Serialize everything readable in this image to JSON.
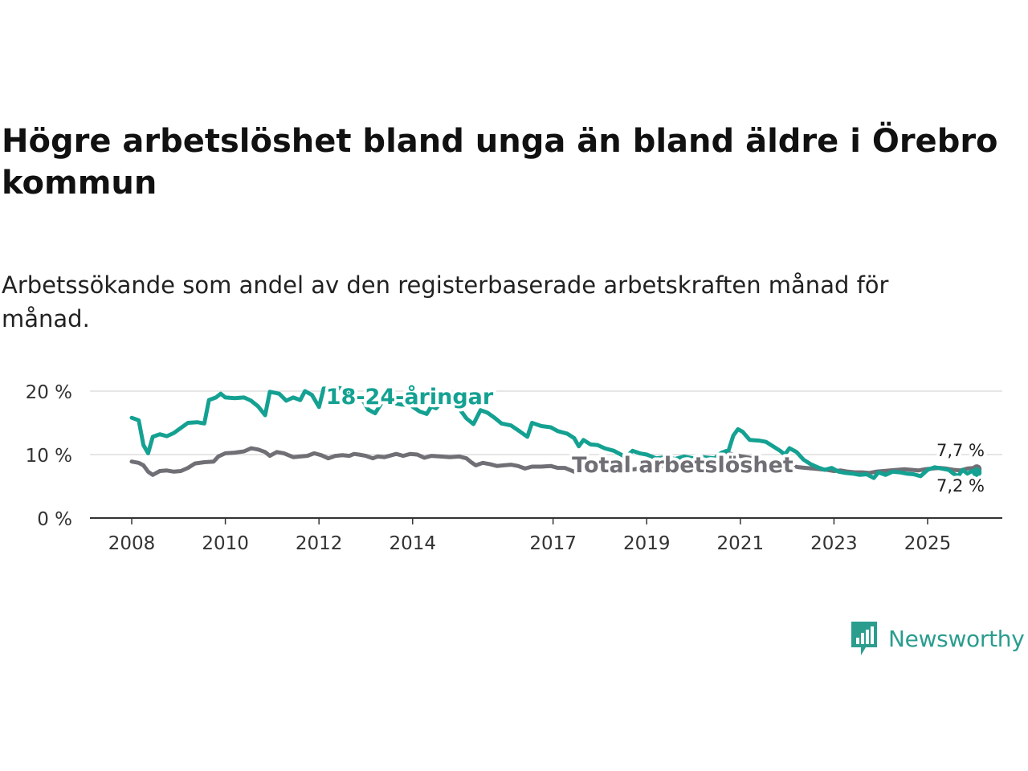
{
  "title": "Högre arbetslöshet bland unga än bland äldre i Örebro kommun",
  "subtitle": "Arbetssökande som andel av den registerbaserade arbetskraften månad för månad.",
  "brand": {
    "name": "Newsworthy",
    "icon": "newsworthy-logo-icon"
  },
  "colors": {
    "youth": "#14a192",
    "total": "#6f6f75",
    "axis": "#333333",
    "grid": "#dddddd"
  },
  "chart_data": {
    "type": "line",
    "title": "",
    "xlabel": "",
    "ylabel": "",
    "xlim": [
      2007.6,
      2026.7
    ],
    "ylim": [
      0,
      20
    ],
    "grid": true,
    "y_ticks": [
      0,
      10,
      20
    ],
    "y_tick_labels": [
      "0 %",
      "10 %",
      "20 %"
    ],
    "x_ticks": [
      2008,
      2010,
      2012,
      2014,
      2017,
      2019,
      2021,
      2023,
      2025
    ],
    "x_tick_labels": [
      "2008",
      "2010",
      "2012",
      "2014",
      "2017",
      "2019",
      "2021",
      "2023",
      "2025"
    ],
    "series": [
      {
        "name": "18-24-åringar",
        "label": "18-24-åringar",
        "end_label": "7,2 %",
        "end_value": 7.2,
        "points": [
          [
            2008.0,
            15.8
          ],
          [
            2008.15,
            15.4
          ],
          [
            2008.25,
            11.5
          ],
          [
            2008.35,
            10.2
          ],
          [
            2008.45,
            12.8
          ],
          [
            2008.6,
            13.2
          ],
          [
            2008.75,
            12.9
          ],
          [
            2008.9,
            13.4
          ],
          [
            2009.05,
            14.2
          ],
          [
            2009.2,
            15.0
          ],
          [
            2009.4,
            15.1
          ],
          [
            2009.55,
            14.9
          ],
          [
            2009.65,
            18.6
          ],
          [
            2009.8,
            19.0
          ],
          [
            2009.9,
            19.6
          ],
          [
            2010.0,
            19.0
          ],
          [
            2010.2,
            18.9
          ],
          [
            2010.4,
            19.0
          ],
          [
            2010.55,
            18.5
          ],
          [
            2010.7,
            17.6
          ],
          [
            2010.85,
            16.2
          ],
          [
            2010.95,
            19.9
          ],
          [
            2011.15,
            19.6
          ],
          [
            2011.3,
            18.5
          ],
          [
            2011.45,
            19.0
          ],
          [
            2011.6,
            18.6
          ],
          [
            2011.7,
            20.0
          ],
          [
            2011.85,
            19.4
          ],
          [
            2012.0,
            17.5
          ],
          [
            2012.1,
            20.4
          ],
          [
            2012.3,
            20.3
          ],
          [
            2012.45,
            20.5
          ],
          [
            2012.6,
            19.6
          ],
          [
            2012.75,
            20.1
          ],
          [
            2012.85,
            18.7
          ],
          [
            2012.95,
            18.4
          ],
          [
            2013.05,
            17.1
          ],
          [
            2013.2,
            16.5
          ],
          [
            2013.35,
            18.3
          ],
          [
            2013.55,
            18.2
          ],
          [
            2013.75,
            17.9
          ],
          [
            2013.95,
            17.8
          ],
          [
            2014.15,
            16.8
          ],
          [
            2014.3,
            16.4
          ],
          [
            2014.4,
            17.6
          ],
          [
            2014.5,
            17.3
          ],
          [
            2014.65,
            18.4
          ],
          [
            2014.85,
            17.8
          ],
          [
            2015.0,
            17.2
          ],
          [
            2015.15,
            15.7
          ],
          [
            2015.3,
            14.8
          ],
          [
            2015.45,
            17.0
          ],
          [
            2015.6,
            16.6
          ],
          [
            2015.75,
            15.8
          ],
          [
            2015.9,
            14.9
          ],
          [
            2016.1,
            14.6
          ],
          [
            2016.3,
            13.6
          ],
          [
            2016.45,
            12.8
          ],
          [
            2016.55,
            15.0
          ],
          [
            2016.75,
            14.5
          ],
          [
            2016.95,
            14.3
          ],
          [
            2017.1,
            13.7
          ],
          [
            2017.3,
            13.3
          ],
          [
            2017.45,
            12.6
          ],
          [
            2017.55,
            11.3
          ],
          [
            2017.65,
            12.3
          ],
          [
            2017.8,
            11.6
          ],
          [
            2017.95,
            11.5
          ],
          [
            2018.1,
            11.0
          ],
          [
            2018.3,
            10.6
          ],
          [
            2018.45,
            10.0
          ],
          [
            2018.55,
            9.6
          ],
          [
            2018.7,
            10.6
          ],
          [
            2018.85,
            10.2
          ],
          [
            2019.0,
            10.0
          ],
          [
            2019.2,
            9.4
          ],
          [
            2019.4,
            9.6
          ],
          [
            2019.6,
            9.3
          ],
          [
            2019.8,
            9.7
          ],
          [
            2020.0,
            9.4
          ],
          [
            2020.2,
            9.6
          ],
          [
            2020.45,
            9.4
          ],
          [
            2020.6,
            10.3
          ],
          [
            2020.75,
            10.7
          ],
          [
            2020.85,
            13.0
          ],
          [
            2020.95,
            14.0
          ],
          [
            2021.05,
            13.6
          ],
          [
            2021.2,
            12.3
          ],
          [
            2021.4,
            12.2
          ],
          [
            2021.55,
            12.0
          ],
          [
            2021.7,
            11.3
          ],
          [
            2021.85,
            10.6
          ],
          [
            2021.95,
            10.0
          ],
          [
            2022.05,
            11.0
          ],
          [
            2022.2,
            10.4
          ],
          [
            2022.35,
            9.2
          ],
          [
            2022.5,
            8.5
          ],
          [
            2022.65,
            8.0
          ],
          [
            2022.8,
            7.6
          ],
          [
            2022.95,
            7.9
          ],
          [
            2023.1,
            7.3
          ],
          [
            2023.25,
            7.1
          ],
          [
            2023.4,
            7.0
          ],
          [
            2023.55,
            6.8
          ],
          [
            2023.7,
            6.9
          ],
          [
            2023.85,
            6.3
          ],
          [
            2023.95,
            7.2
          ],
          [
            2024.1,
            6.8
          ],
          [
            2024.25,
            7.3
          ],
          [
            2024.4,
            7.2
          ],
          [
            2024.55,
            7.0
          ],
          [
            2024.7,
            6.9
          ],
          [
            2024.85,
            6.6
          ],
          [
            2025.0,
            7.6
          ],
          [
            2025.15,
            8.0
          ],
          [
            2025.3,
            7.8
          ],
          [
            2025.45,
            7.6
          ],
          [
            2025.55,
            7.0
          ],
          [
            2025.65,
            6.6
          ],
          [
            2025.75,
            7.6
          ],
          [
            2025.85,
            7.0
          ],
          [
            2025.95,
            7.4
          ],
          [
            2026.05,
            7.2
          ]
        ]
      },
      {
        "name": "Total arbetslöshet",
        "label": "Total arbetslöshet",
        "end_label": "7,7 %",
        "end_value": 7.7,
        "points": [
          [
            2008.0,
            8.9
          ],
          [
            2008.15,
            8.7
          ],
          [
            2008.25,
            8.3
          ],
          [
            2008.35,
            7.3
          ],
          [
            2008.45,
            6.8
          ],
          [
            2008.6,
            7.4
          ],
          [
            2008.75,
            7.5
          ],
          [
            2008.9,
            7.3
          ],
          [
            2009.05,
            7.4
          ],
          [
            2009.2,
            7.9
          ],
          [
            2009.35,
            8.6
          ],
          [
            2009.55,
            8.8
          ],
          [
            2009.75,
            8.9
          ],
          [
            2009.85,
            9.7
          ],
          [
            2010.0,
            10.2
          ],
          [
            2010.2,
            10.3
          ],
          [
            2010.4,
            10.5
          ],
          [
            2010.55,
            11.0
          ],
          [
            2010.7,
            10.8
          ],
          [
            2010.85,
            10.4
          ],
          [
            2010.95,
            9.8
          ],
          [
            2011.1,
            10.4
          ],
          [
            2011.25,
            10.2
          ],
          [
            2011.45,
            9.6
          ],
          [
            2011.6,
            9.7
          ],
          [
            2011.75,
            9.8
          ],
          [
            2011.9,
            10.2
          ],
          [
            2012.05,
            9.9
          ],
          [
            2012.2,
            9.4
          ],
          [
            2012.35,
            9.8
          ],
          [
            2012.5,
            9.9
          ],
          [
            2012.65,
            9.8
          ],
          [
            2012.75,
            10.1
          ],
          [
            2012.85,
            10.0
          ],
          [
            2013.0,
            9.8
          ],
          [
            2013.15,
            9.4
          ],
          [
            2013.25,
            9.7
          ],
          [
            2013.4,
            9.6
          ],
          [
            2013.55,
            9.9
          ],
          [
            2013.65,
            10.1
          ],
          [
            2013.8,
            9.8
          ],
          [
            2013.95,
            10.1
          ],
          [
            2014.1,
            10.0
          ],
          [
            2014.25,
            9.5
          ],
          [
            2014.4,
            9.8
          ],
          [
            2014.6,
            9.7
          ],
          [
            2014.8,
            9.6
          ],
          [
            2015.0,
            9.7
          ],
          [
            2015.15,
            9.4
          ],
          [
            2015.25,
            8.8
          ],
          [
            2015.35,
            8.3
          ],
          [
            2015.5,
            8.7
          ],
          [
            2015.65,
            8.5
          ],
          [
            2015.8,
            8.2
          ],
          [
            2015.95,
            8.3
          ],
          [
            2016.1,
            8.4
          ],
          [
            2016.25,
            8.2
          ],
          [
            2016.4,
            7.8
          ],
          [
            2016.55,
            8.1
          ],
          [
            2016.75,
            8.1
          ],
          [
            2016.95,
            8.2
          ],
          [
            2017.1,
            7.9
          ],
          [
            2017.25,
            7.9
          ],
          [
            2017.45,
            7.3
          ],
          [
            2017.6,
            7.6
          ],
          [
            2017.8,
            7.5
          ],
          [
            2017.95,
            7.5
          ],
          [
            2018.05,
            7.6
          ],
          [
            2018.2,
            7.5
          ],
          [
            2018.4,
            7.7
          ],
          [
            2018.55,
            7.6
          ],
          [
            2018.75,
            7.7
          ],
          [
            2018.9,
            7.9
          ],
          [
            2019.1,
            8.0
          ],
          [
            2019.3,
            8.2
          ],
          [
            2019.5,
            8.1
          ],
          [
            2019.7,
            8.3
          ],
          [
            2019.9,
            8.2
          ],
          [
            2020.1,
            8.4
          ],
          [
            2020.3,
            8.6
          ],
          [
            2020.45,
            9.3
          ],
          [
            2020.6,
            10.0
          ],
          [
            2020.75,
            10.2
          ],
          [
            2020.9,
            9.9
          ],
          [
            2021.05,
            9.7
          ],
          [
            2021.2,
            9.5
          ],
          [
            2021.35,
            9.3
          ],
          [
            2021.5,
            9.0
          ],
          [
            2021.65,
            8.7
          ],
          [
            2021.8,
            8.5
          ],
          [
            2021.95,
            8.3
          ],
          [
            2022.1,
            8.2
          ],
          [
            2022.25,
            8.0
          ],
          [
            2022.4,
            7.9
          ],
          [
            2022.55,
            7.8
          ],
          [
            2022.7,
            7.7
          ],
          [
            2022.85,
            7.6
          ],
          [
            2023.0,
            7.4
          ],
          [
            2023.15,
            7.5
          ],
          [
            2023.3,
            7.3
          ],
          [
            2023.45,
            7.2
          ],
          [
            2023.6,
            7.2
          ],
          [
            2023.75,
            7.1
          ],
          [
            2023.9,
            7.3
          ],
          [
            2024.05,
            7.4
          ],
          [
            2024.2,
            7.5
          ],
          [
            2024.35,
            7.6
          ],
          [
            2024.5,
            7.7
          ],
          [
            2024.65,
            7.6
          ],
          [
            2024.8,
            7.5
          ],
          [
            2024.95,
            7.7
          ],
          [
            2025.1,
            7.8
          ],
          [
            2025.25,
            7.9
          ],
          [
            2025.4,
            7.8
          ],
          [
            2025.55,
            7.6
          ],
          [
            2025.7,
            7.5
          ],
          [
            2025.85,
            7.8
          ],
          [
            2026.0,
            7.9
          ],
          [
            2026.05,
            7.7
          ]
        ]
      }
    ]
  }
}
